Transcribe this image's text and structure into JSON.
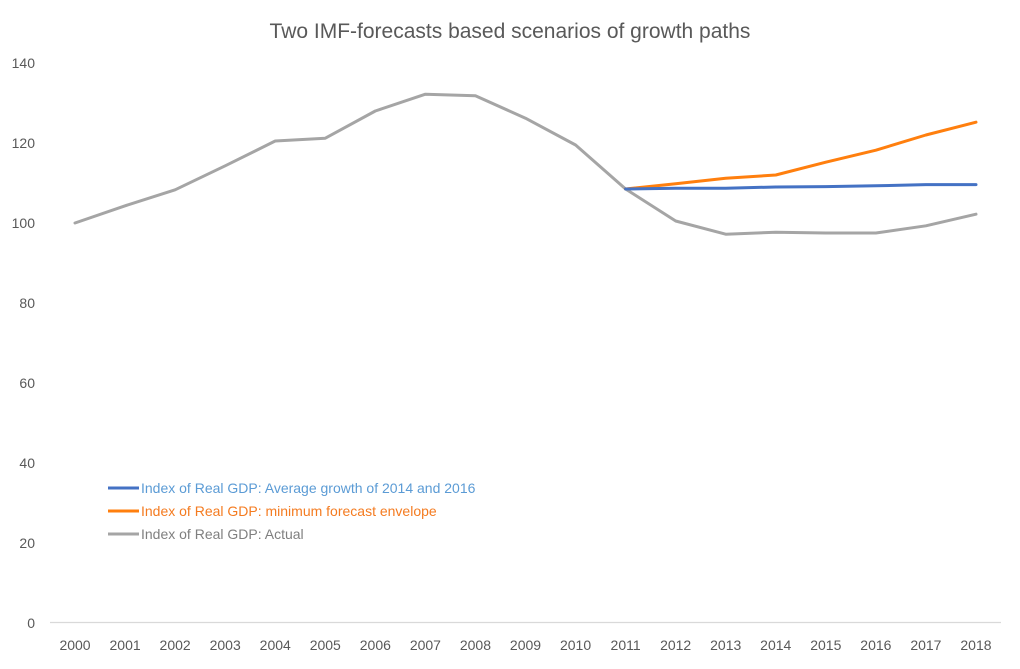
{
  "chart_data": {
    "type": "line",
    "title": "Two IMF-forecasts based scenarios of growth paths",
    "xlabel": "",
    "ylabel": "",
    "ylim": [
      0,
      140
    ],
    "yticks": [
      0,
      20,
      40,
      60,
      80,
      100,
      120,
      140
    ],
    "grid": false,
    "legend_position": "bottom-left",
    "categories": [
      "2000",
      "2001",
      "2002",
      "2003",
      "2004",
      "2005",
      "2006",
      "2007",
      "2008",
      "2009",
      "2010",
      "2011",
      "2012",
      "2013",
      "2014",
      "2015",
      "2016",
      "2017",
      "2018"
    ],
    "series": [
      {
        "name": "Index of Real GDP: Average growth of 2014 and 2016",
        "color": "#4472C4",
        "text_color": "#5B9BD5",
        "values": [
          null,
          null,
          null,
          null,
          null,
          null,
          null,
          null,
          null,
          null,
          null,
          108.5,
          108.7,
          108.7,
          109.0,
          109.1,
          109.3,
          109.6,
          109.6
        ]
      },
      {
        "name": "Index of Real GDP: minimum forecast envelope",
        "color": "#FF7F0E",
        "text_color": "#F47B20",
        "values": [
          null,
          null,
          null,
          null,
          null,
          null,
          null,
          null,
          null,
          null,
          null,
          108.5,
          109.8,
          111.2,
          112.0,
          115.2,
          118.2,
          122.0,
          125.2
        ]
      },
      {
        "name": "Index of Real GDP: Actual",
        "color": "#A5A5A5",
        "text_color": "#7F7F7F",
        "values": [
          100.0,
          104.3,
          108.3,
          114.3,
          120.5,
          121.2,
          128.0,
          132.2,
          131.8,
          126.2,
          119.5,
          108.5,
          100.5,
          97.2,
          97.7,
          97.5,
          97.5,
          99.3,
          102.2
        ]
      }
    ]
  }
}
